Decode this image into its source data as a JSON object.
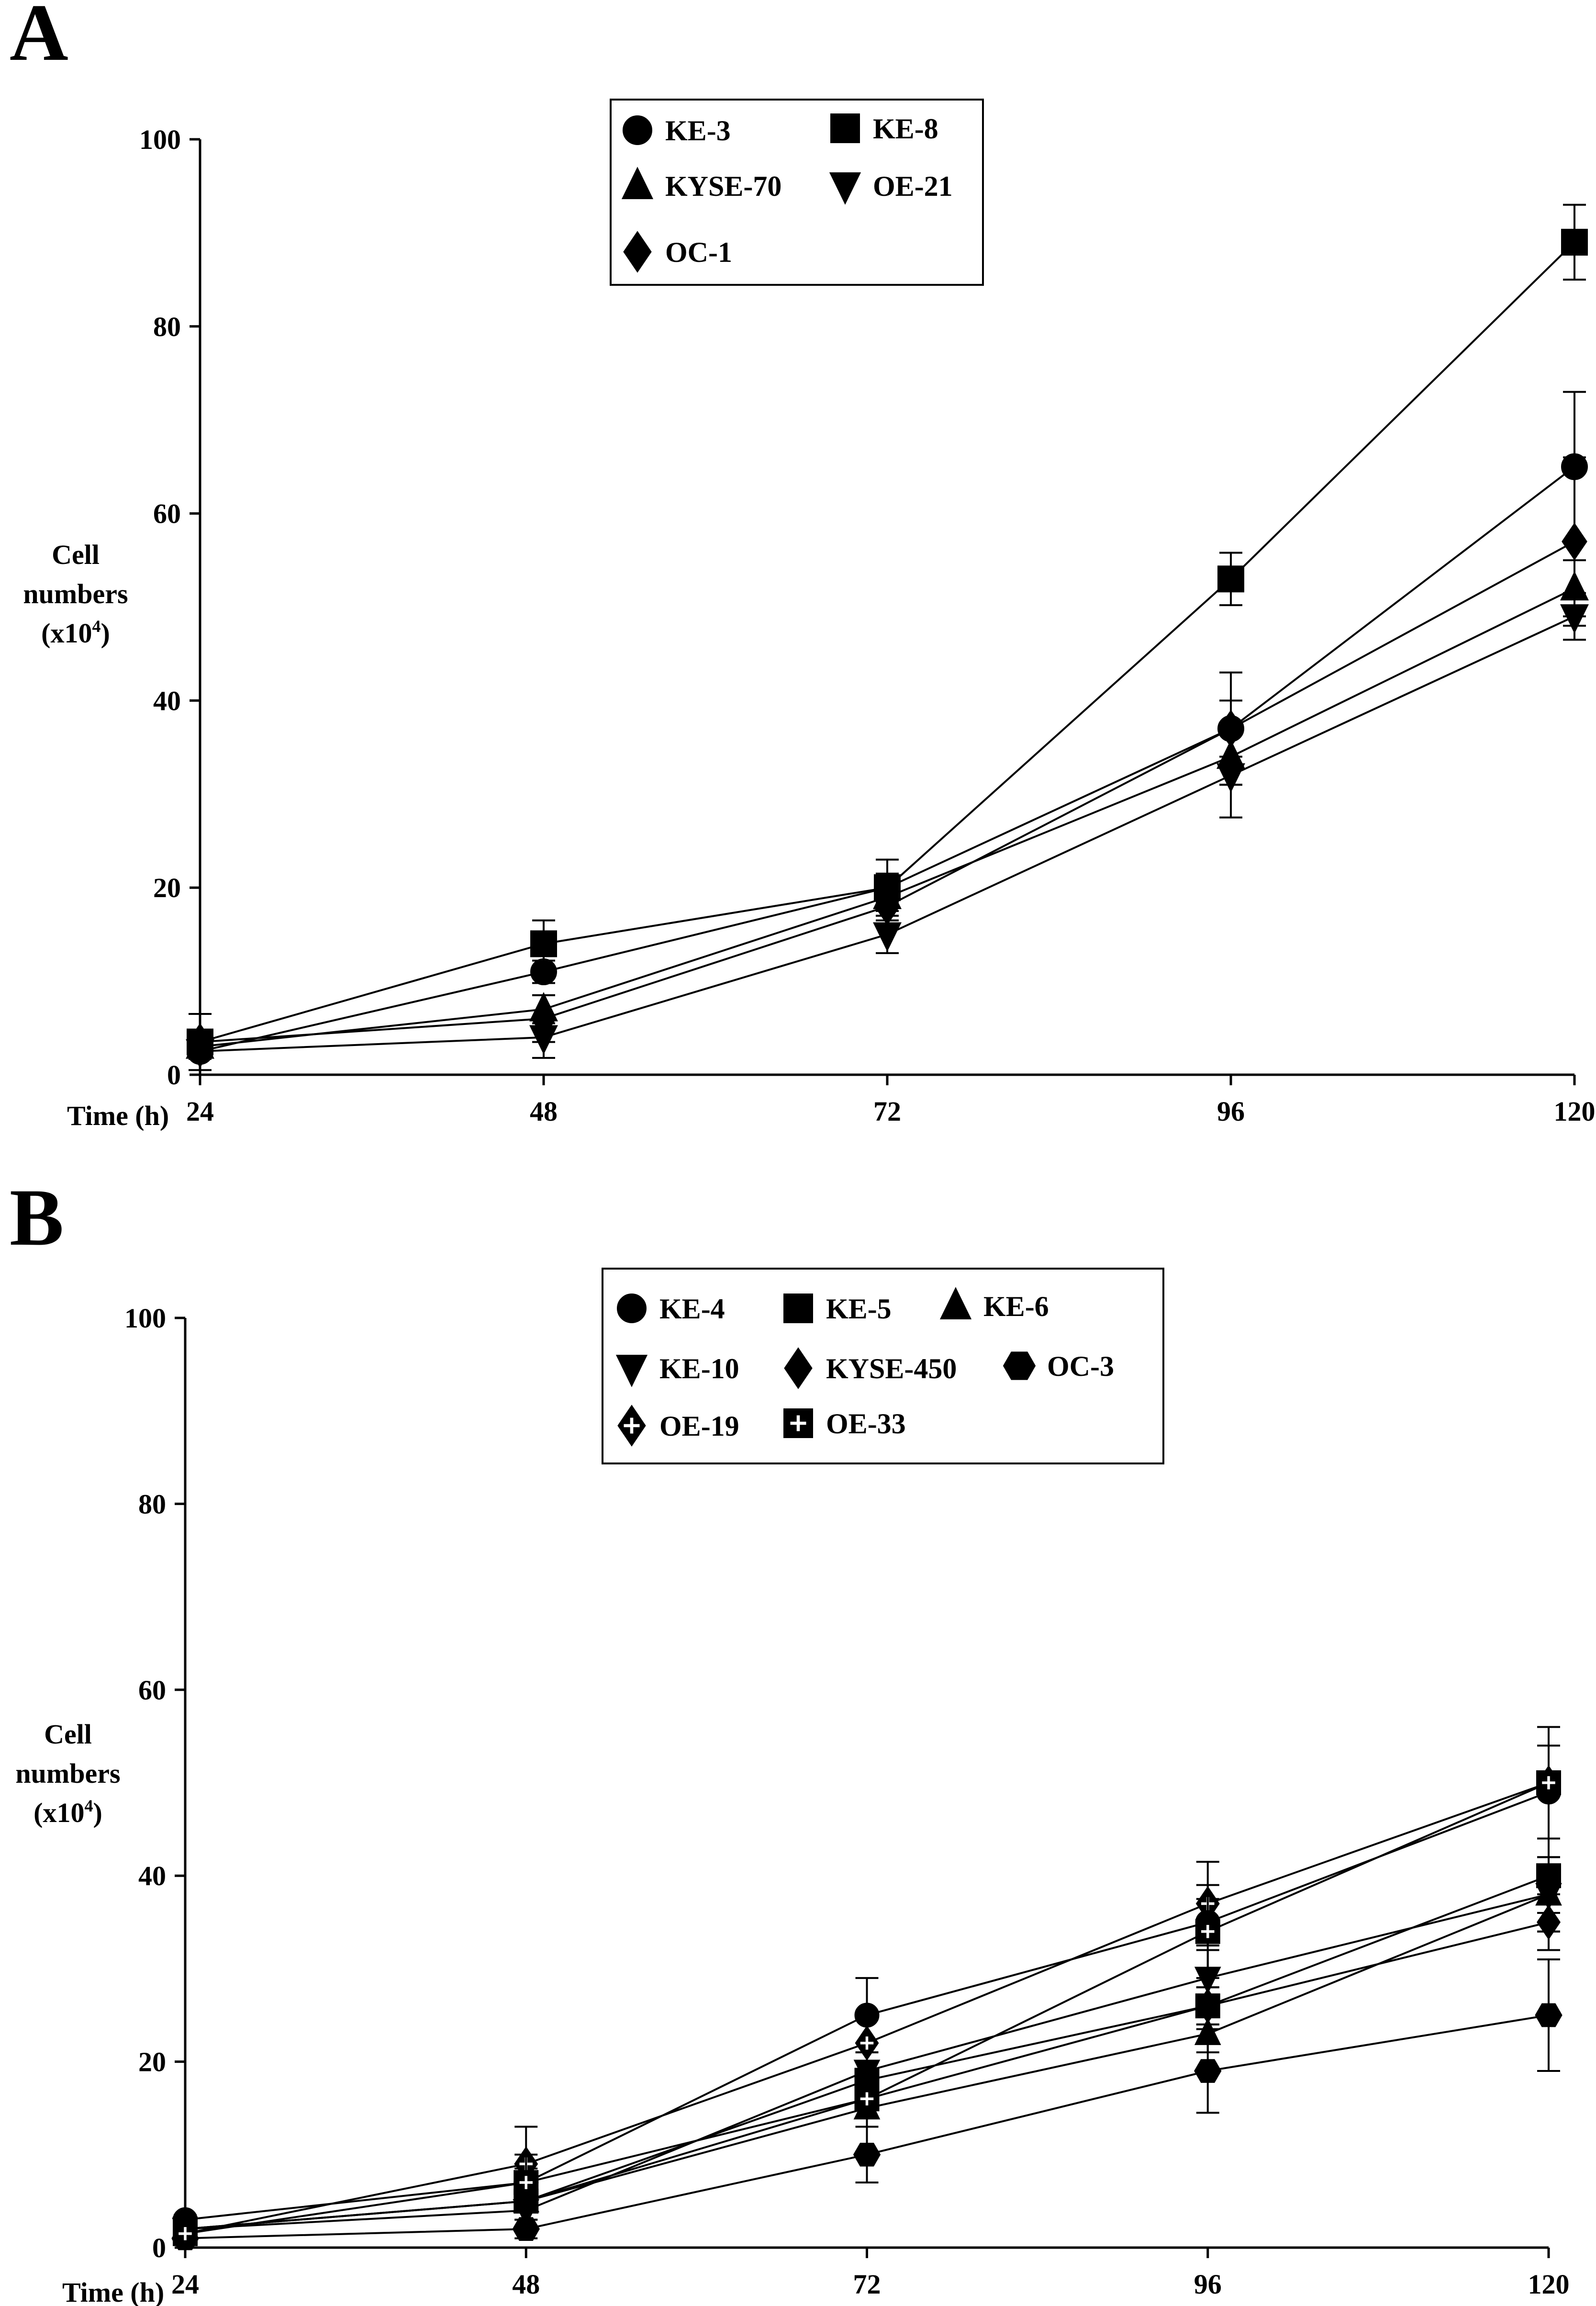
{
  "chart_data": [
    {
      "panel_label": "A",
      "type": "line",
      "xlabel": "Time (h)",
      "ylabel_lines": [
        "Cell",
        "numbers"
      ],
      "ylabel_unit": "(x10",
      "ylabel_exp": "4",
      "ylabel_close": ")",
      "x": [
        24,
        48,
        72,
        96,
        120
      ],
      "x_tick_labels": [
        "24",
        "48",
        "72",
        "96",
        "120"
      ],
      "ylim": [
        0,
        100
      ],
      "y_ticks": [
        0,
        20,
        40,
        60,
        80,
        100
      ],
      "y_tick_labels": [
        "0",
        "20",
        "40",
        "60",
        "80",
        "100"
      ],
      "legend_position": "top-center",
      "series": [
        {
          "name": "KE-3",
          "marker": "circle",
          "values": [
            2.5,
            11,
            20,
            37,
            65
          ],
          "errors": [
            0.8,
            1.2,
            1.5,
            6,
            8
          ]
        },
        {
          "name": "KE-8",
          "marker": "square",
          "values": [
            3.5,
            14,
            20,
            53,
            89
          ],
          "errors": [
            0.8,
            2.5,
            3,
            2.8,
            4
          ]
        },
        {
          "name": "KYSE-70",
          "marker": "triangle-up",
          "values": [
            3,
            7,
            19,
            34,
            52
          ],
          "errors": [
            0.8,
            1.5,
            1.5,
            3,
            3
          ]
        },
        {
          "name": "OE-21",
          "marker": "triangle-down",
          "values": [
            2.5,
            4,
            15,
            32,
            49
          ],
          "errors": [
            0.8,
            2.2,
            2,
            4.5,
            2.5
          ]
        },
        {
          "name": "OC-1",
          "marker": "diamond",
          "values": [
            3.5,
            6,
            18,
            37,
            57
          ],
          "errors": [
            3,
            2.5,
            1.5,
            3,
            9
          ]
        }
      ]
    },
    {
      "panel_label": "B",
      "type": "line",
      "xlabel": "Time (h)",
      "ylabel_lines": [
        "Cell",
        "numbers"
      ],
      "ylabel_unit": "(x10",
      "ylabel_exp": "4",
      "ylabel_close": ")",
      "x": [
        24,
        48,
        72,
        96,
        120
      ],
      "x_tick_labels": [
        "24",
        "48",
        "72",
        "96",
        "120"
      ],
      "ylim": [
        0,
        100
      ],
      "y_ticks": [
        0,
        20,
        40,
        60,
        80,
        100
      ],
      "y_tick_labels": [
        "0",
        "20",
        "40",
        "60",
        "80",
        "100"
      ],
      "legend_position": "top-center",
      "series": [
        {
          "name": "KE-4",
          "marker": "circle",
          "values": [
            3,
            7,
            25,
            35,
            49
          ],
          "errors": [
            0.5,
            1.5,
            4,
            2.5,
            5
          ]
        },
        {
          "name": "KE-5",
          "marker": "square",
          "values": [
            2,
            5,
            18,
            26,
            40
          ],
          "errors": [
            0.5,
            1,
            2,
            2,
            4
          ]
        },
        {
          "name": "KE-6",
          "marker": "triangle-up",
          "values": [
            2,
            5,
            15,
            23,
            38
          ],
          "errors": [
            0.5,
            1,
            2,
            2,
            4
          ]
        },
        {
          "name": "KE-10",
          "marker": "triangle-down",
          "values": [
            2,
            4,
            19,
            29,
            38
          ],
          "errors": [
            0.5,
            1,
            2,
            3,
            4
          ]
        },
        {
          "name": "KYSE-450",
          "marker": "diamond",
          "values": [
            2,
            5,
            16,
            26,
            35
          ],
          "errors": [
            0.5,
            1,
            2,
            2,
            3
          ]
        },
        {
          "name": "OC-3",
          "marker": "hexagon",
          "values": [
            1,
            2,
            10,
            19,
            25
          ],
          "errors": [
            0.5,
            1,
            3,
            4.5,
            6
          ]
        },
        {
          "name": "OE-19",
          "marker": "diamond-cross",
          "values": [
            1.5,
            9,
            22,
            37,
            50
          ],
          "errors": [
            0.5,
            4,
            3,
            4.5,
            6
          ]
        },
        {
          "name": "OE-33",
          "marker": "square-cross",
          "values": [
            1.5,
            7,
            16,
            34,
            50
          ],
          "errors": [
            0.5,
            3,
            2,
            5,
            6
          ]
        }
      ]
    }
  ]
}
